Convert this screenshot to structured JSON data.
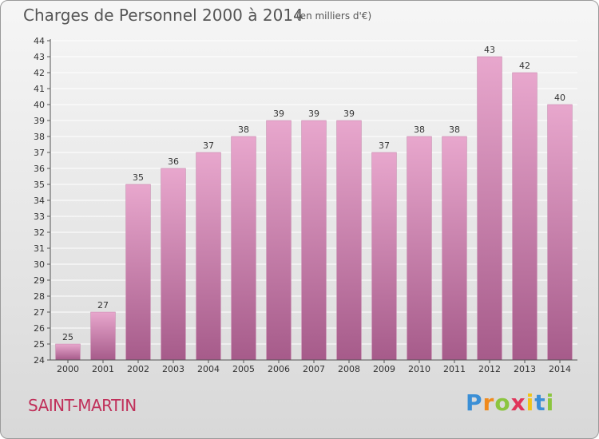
{
  "header": {
    "title": "Charges de Personnel 2000 à 2014",
    "subtitle": "(en milliers d'€)"
  },
  "footer": {
    "city": "SAINT-MARTIN",
    "logo_text": "Proxiti",
    "logo_letters": [
      {
        "ch": "P",
        "color": "#3b8fd6"
      },
      {
        "ch": "r",
        "color": "#f08a1c"
      },
      {
        "ch": "o",
        "color": "#8bc53f"
      },
      {
        "ch": "x",
        "color": "#e0345a"
      },
      {
        "ch": "i",
        "color": "#f0c419"
      },
      {
        "ch": "t",
        "color": "#3b8fd6"
      },
      {
        "ch": "i",
        "color": "#8bc53f"
      }
    ]
  },
  "colors": {
    "bar_top": "#e8a7cd",
    "bar_bottom": "#a65b8a",
    "grid": "#ffffff",
    "axis": "#555555",
    "city": "#c0305a"
  },
  "chart_data": {
    "type": "bar",
    "title": "Charges de Personnel 2000 à 2014",
    "subtitle": "(en milliers d'€)",
    "xlabel": "",
    "ylabel": "",
    "categories": [
      "2000",
      "2001",
      "2002",
      "2003",
      "2004",
      "2005",
      "2006",
      "2007",
      "2008",
      "2009",
      "2010",
      "2011",
      "2012",
      "2013",
      "2014"
    ],
    "values": [
      25,
      27,
      35,
      36,
      37,
      38,
      39,
      39,
      39,
      37,
      38,
      38,
      43,
      42,
      40
    ],
    "ylim": [
      24,
      44
    ],
    "ytick_step": 1,
    "grid": true,
    "data_labels": true
  }
}
